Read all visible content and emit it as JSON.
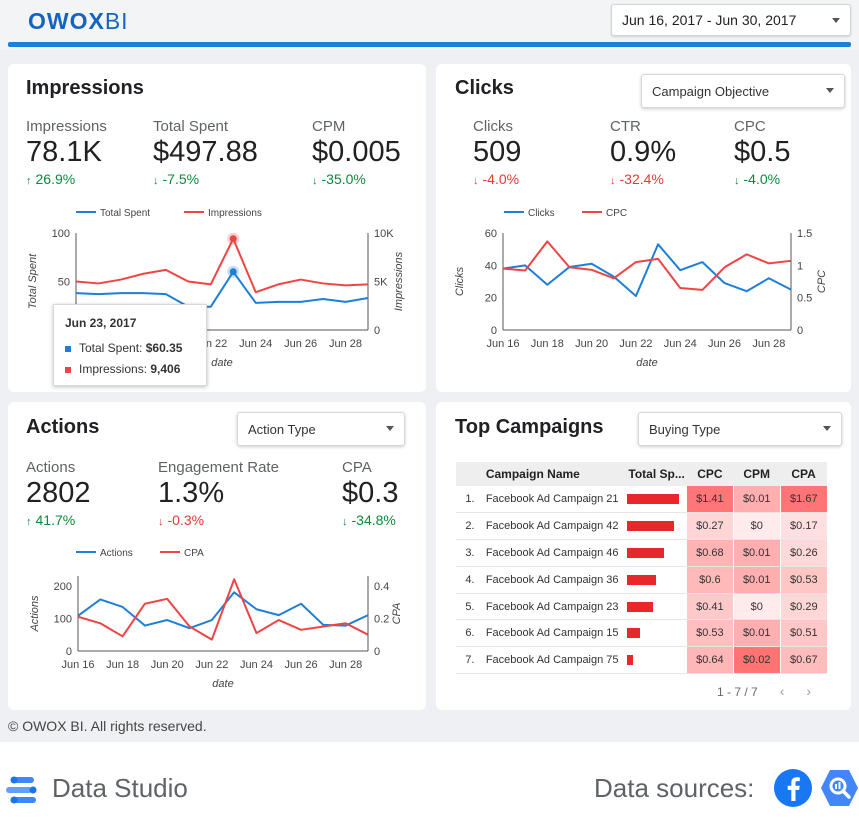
{
  "header": {
    "logo_bold": "OWOX",
    "logo_light": "BI",
    "date_range": "Jun 16, 2017 - Jun 30, 2017"
  },
  "impressions": {
    "title": "Impressions",
    "kpis": [
      {
        "label": "Impressions",
        "value": "78.1K",
        "change": "26.9%",
        "direction": "up"
      },
      {
        "label": "Total Spent",
        "value": "$497.88",
        "change": "-7.5%",
        "direction": "down-good"
      },
      {
        "label": "CPM",
        "value": "$0.005",
        "change": "-35.0%",
        "direction": "down-good"
      }
    ],
    "tooltip": {
      "date": "Jun 23, 2017",
      "spent_label": "Total Spent:",
      "spent_value": "$60.35",
      "imp_label": "Impressions:",
      "imp_value": "9,406"
    }
  },
  "clicks": {
    "title": "Clicks",
    "dropdown": "Campaign Objective",
    "kpis": [
      {
        "label": "Clicks",
        "value": "509",
        "change": "-4.0%",
        "direction": "down-bad"
      },
      {
        "label": "CTR",
        "value": "0.9%",
        "change": "-32.4%",
        "direction": "down-bad"
      },
      {
        "label": "CPC",
        "value": "$0.5",
        "change": "-4.0%",
        "direction": "down-good"
      }
    ]
  },
  "actions": {
    "title": "Actions",
    "dropdown": "Action Type",
    "kpis": [
      {
        "label": "Actions",
        "value": "2802",
        "change": "41.7%",
        "direction": "up"
      },
      {
        "label": "Engagement Rate",
        "value": "1.3%",
        "change": "-0.3%",
        "direction": "down-bad"
      },
      {
        "label": "CPA",
        "value": "$0.3",
        "change": "-34.8%",
        "direction": "down-good"
      }
    ]
  },
  "campaigns": {
    "title": "Top Campaigns",
    "dropdown": "Buying Type",
    "columns": [
      "Campaign Name",
      "Total Sp...",
      "CPC",
      "CPM",
      "CPA"
    ],
    "rows": [
      {
        "n": "1.",
        "name": "Facebook Ad Campaign 21",
        "spent_frac": 0.88,
        "cpc": "$1.41",
        "cpm": "$0.01",
        "cpa": "$1.67"
      },
      {
        "n": "2.",
        "name": "Facebook Ad Campaign 42",
        "spent_frac": 0.8,
        "cpc": "$0.27",
        "cpm": "$0",
        "cpa": "$0.17"
      },
      {
        "n": "3.",
        "name": "Facebook Ad Campaign 46",
        "spent_frac": 0.63,
        "cpc": "$0.68",
        "cpm": "$0.01",
        "cpa": "$0.26"
      },
      {
        "n": "4.",
        "name": "Facebook Ad Campaign 36",
        "spent_frac": 0.5,
        "cpc": "$0.6",
        "cpm": "$0.01",
        "cpa": "$0.53"
      },
      {
        "n": "5.",
        "name": "Facebook Ad Campaign 23",
        "spent_frac": 0.45,
        "cpc": "$0.41",
        "cpm": "$0",
        "cpa": "$0.29"
      },
      {
        "n": "6.",
        "name": "Facebook Ad Campaign 15",
        "spent_frac": 0.23,
        "cpc": "$0.53",
        "cpm": "$0.01",
        "cpa": "$0.51"
      },
      {
        "n": "7.",
        "name": "Facebook Ad Campaign 75",
        "spent_frac": 0.1,
        "cpc": "$0.64",
        "cpm": "$0.02",
        "cpa": "$0.67"
      }
    ],
    "pager": "1 - 7 / 7"
  },
  "footer": {
    "copyright": "© OWOX BI. All rights reserved.",
    "product": "Data Studio",
    "sources_label": "Data sources:"
  },
  "colors": {
    "blue": "#1e7fd8",
    "red": "#ef4444",
    "up": "#0a8a3a",
    "down": "#e53935"
  },
  "chart_data": [
    {
      "type": "line",
      "name": "impressions-chart",
      "x": [
        "Jun 16",
        "Jun 17",
        "Jun 18",
        "Jun 19",
        "Jun 20",
        "Jun 21",
        "Jun 22",
        "Jun 23",
        "Jun 24",
        "Jun 25",
        "Jun 26",
        "Jun 27",
        "Jun 28",
        "Jun 29"
      ],
      "x_ticks": [
        "Jun 16",
        "Jun 18",
        "Jun 20",
        "Jun 22",
        "Jun 24",
        "Jun 26",
        "Jun 28"
      ],
      "xlabel": "date",
      "series": [
        {
          "name": "Total Spent",
          "axis": "left",
          "color": "#1e7fd8",
          "values": [
            38,
            37,
            38,
            38,
            37,
            24,
            24,
            60,
            28,
            29,
            29,
            32,
            29,
            33
          ]
        },
        {
          "name": "Impressions",
          "axis": "right",
          "color": "#ef4444",
          "values": [
            5000,
            4800,
            5200,
            5800,
            6200,
            5000,
            4700,
            9406,
            3900,
            4700,
            5200,
            4800,
            4600,
            4700
          ]
        }
      ],
      "left_axis": {
        "label": "Total Spent",
        "ticks": [
          "0",
          "50",
          "100"
        ],
        "range": [
          0,
          100
        ]
      },
      "right_axis": {
        "label": "Impressions",
        "ticks": [
          "0",
          "5K",
          "10K"
        ],
        "range": [
          0,
          10000
        ]
      }
    },
    {
      "type": "line",
      "name": "clicks-chart",
      "x": [
        "Jun 16",
        "Jun 17",
        "Jun 18",
        "Jun 19",
        "Jun 20",
        "Jun 21",
        "Jun 22",
        "Jun 23",
        "Jun 24",
        "Jun 25",
        "Jun 26",
        "Jun 27",
        "Jun 28",
        "Jun 29"
      ],
      "x_ticks": [
        "Jun 16",
        "Jun 18",
        "Jun 20",
        "Jun 22",
        "Jun 24",
        "Jun 26",
        "Jun 28"
      ],
      "xlabel": "date",
      "series": [
        {
          "name": "Clicks",
          "axis": "left",
          "color": "#1e7fd8",
          "values": [
            38,
            40,
            28,
            39,
            41,
            33,
            21,
            53,
            37,
            42,
            29,
            24,
            32,
            25
          ]
        },
        {
          "name": "CPC",
          "axis": "right",
          "color": "#ef4444",
          "values": [
            0.95,
            0.92,
            1.37,
            0.97,
            0.93,
            0.8,
            1.05,
            1.1,
            0.65,
            0.62,
            0.97,
            1.17,
            1.03,
            1.07
          ]
        }
      ],
      "left_axis": {
        "label": "Clicks",
        "ticks": [
          "0",
          "20",
          "40",
          "60"
        ],
        "range": [
          0,
          60
        ]
      },
      "right_axis": {
        "label": "CPC",
        "ticks": [
          "0",
          "0.5",
          "1",
          "1.5"
        ],
        "range": [
          0,
          1.5
        ]
      }
    },
    {
      "type": "line",
      "name": "actions-chart",
      "x": [
        "Jun 16",
        "Jun 17",
        "Jun 18",
        "Jun 19",
        "Jun 20",
        "Jun 21",
        "Jun 22",
        "Jun 23",
        "Jun 24",
        "Jun 25",
        "Jun 26",
        "Jun 27",
        "Jun 28",
        "Jun 29"
      ],
      "x_ticks": [
        "Jun 16",
        "Jun 18",
        "Jun 20",
        "Jun 22",
        "Jun 24",
        "Jun 26",
        "Jun 28"
      ],
      "xlabel": "date",
      "series": [
        {
          "name": "Actions",
          "axis": "left",
          "color": "#1e7fd8",
          "values": [
            108,
            158,
            135,
            78,
            95,
            70,
            95,
            180,
            128,
            110,
            145,
            80,
            78,
            110
          ]
        },
        {
          "name": "CPA",
          "axis": "right",
          "color": "#ef4444",
          "values": [
            0.21,
            0.17,
            0.09,
            0.29,
            0.32,
            0.15,
            0.07,
            0.44,
            0.11,
            0.19,
            0.13,
            0.15,
            0.17,
            0.1
          ]
        }
      ],
      "left_axis": {
        "label": "Actions",
        "ticks": [
          "0",
          "100",
          "200"
        ],
        "range": [
          0,
          230
        ]
      },
      "right_axis": {
        "label": "CPA",
        "ticks": [
          "0",
          "0.2",
          "0.4"
        ],
        "range": [
          0,
          0.46
        ]
      }
    }
  ]
}
